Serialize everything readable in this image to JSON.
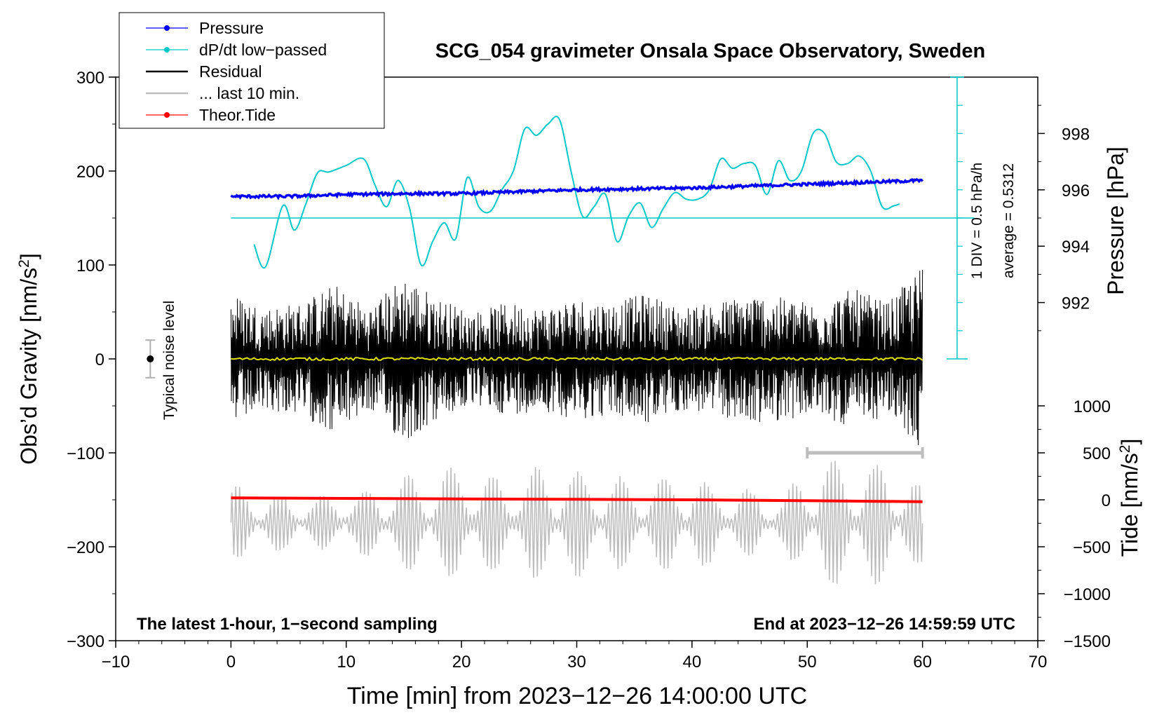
{
  "chart_data": {
    "type": "line",
    "title": "SCG_054 gravimeter Onsala Space Observatory, Sweden",
    "xlabel": "Time [min] from 2023−12−26 14:00:00 UTC",
    "ylabel_left": "Obs’d Gravity [nm/s",
    "ylabel_left_sup": "2",
    "ylabel_left_tail": "]",
    "ylabel_right_pressure": "Pressure [hPa]",
    "ylabel_right_tide": "Tide [nm/s",
    "ylabel_right_tide_sup": "2",
    "ylabel_right_tide_tail": "]",
    "xlim": [
      -10,
      70
    ],
    "ylim_left": [
      -300,
      300
    ],
    "x_ticks": [
      "−10",
      "0",
      "10",
      "20",
      "30",
      "40",
      "50",
      "60",
      "70"
    ],
    "x_tick_values": [
      -10,
      0,
      10,
      20,
      30,
      40,
      50,
      60,
      70
    ],
    "y_left_ticks": [
      "300",
      "200",
      "100",
      "0",
      "−100",
      "−200",
      "−300"
    ],
    "y_left_tick_values": [
      300,
      200,
      100,
      0,
      -100,
      -200,
      -300
    ],
    "pressure_ticks": [
      "998",
      "996",
      "994",
      "992"
    ],
    "pressure_tick_values": [
      998,
      996,
      994,
      992
    ],
    "pressure_axis_map": {
      "gravity_at_998": 240,
      "gravity_per_hPa": 30
    },
    "tide_ticks": [
      "1000",
      "500",
      "0",
      "−500",
      "−1000",
      "−1500"
    ],
    "tide_tick_values": [
      1000,
      500,
      0,
      -500,
      -1000,
      -1500
    ],
    "tide_axis_map": {
      "gravity_at_0": -150,
      "gravity_per_nms2": 0.1
    },
    "footer_left": "The latest 1-hour, 1−second sampling",
    "footer_right": "End at 2023−12−26 14:59:59 UTC",
    "noise_label": "Typical noise level",
    "noise_level": {
      "x": -7,
      "center": 0,
      "half_range": 20
    },
    "dpdt_scale": {
      "label_div": "1 DIV = 0.5 hPa/h",
      "label_avg": "average = 0.5312",
      "x": 63,
      "baseline": 150,
      "div_count": 10,
      "div_size": 30
    },
    "last10_marker": {
      "x_start": 50,
      "x_end": 60,
      "y": -100
    },
    "legend": [
      {
        "label": "Pressure",
        "color": "#0000ff",
        "style": "line-dot"
      },
      {
        "label": "dP/dt low−passed",
        "color": "#00c8c8",
        "style": "line-dot"
      },
      {
        "label": "Residual",
        "color": "#000000",
        "style": "line"
      },
      {
        "label": "... last 10 min.",
        "color": "#bdbdbd",
        "style": "line"
      },
      {
        "label": "Theor.Tide",
        "color": "#ff0000",
        "style": "line-dot"
      }
    ],
    "series": [
      {
        "name": "Pressure",
        "color": "#0000ff",
        "x": [
          0,
          5,
          10,
          15,
          20,
          25,
          30,
          35,
          40,
          45,
          50,
          55,
          60
        ],
        "y": [
          173,
          173,
          175,
          176,
          176,
          178,
          180,
          181,
          182,
          184,
          186,
          188,
          190
        ]
      },
      {
        "name": "dP/dt low-passed",
        "color": "#00c8c8",
        "x": [
          2,
          3,
          4.5,
          5.5,
          6.5,
          7.5,
          8.5,
          10,
          11.5,
          12.5,
          13.5,
          14.5,
          15.5,
          16.5,
          17.5,
          18.5,
          19.5,
          20.5,
          21.5,
          22.5,
          23.5,
          24.5,
          25.5,
          26.5,
          27.5,
          28.5,
          29.5,
          30.5,
          31.5,
          32.5,
          33.5,
          34.5,
          35.5,
          36.5,
          37.5,
          38.5,
          39.5,
          40.5,
          41.5,
          42.5,
          43.5,
          44.5,
          45.5,
          46.5,
          47.5,
          48.5,
          49.5,
          50.5,
          51.5,
          52.5,
          53.5,
          54.5,
          55.5,
          56.5,
          57.5,
          58
        ],
        "y": [
          122,
          98,
          163,
          137,
          165,
          198,
          199,
          206,
          213,
          185,
          162,
          190,
          160,
          100,
          125,
          145,
          128,
          193,
          162,
          157,
          180,
          200,
          245,
          238,
          250,
          255,
          200,
          152,
          162,
          175,
          125,
          152,
          166,
          140,
          160,
          177,
          170,
          170,
          180,
          213,
          203,
          208,
          206,
          175,
          211,
          190,
          200,
          240,
          240,
          210,
          208,
          216,
          200,
          162,
          163,
          165
        ]
      },
      {
        "name": "Residual",
        "color": "#000000",
        "envelope_x": [
          0,
          3,
          6,
          9,
          12,
          15,
          18,
          21,
          24,
          27,
          30,
          33,
          36,
          39,
          42,
          45,
          48,
          51,
          54,
          57,
          60
        ],
        "envelope_amp": [
          70,
          55,
          60,
          80,
          55,
          90,
          65,
          50,
          60,
          55,
          65,
          60,
          70,
          55,
          60,
          70,
          65,
          60,
          75,
          60,
          100
        ]
      },
      {
        "name": "... last 10 min.",
        "color": "#bdbdbd",
        "envelope_x": [
          0,
          3,
          6,
          9,
          12,
          15,
          18,
          21,
          24,
          27,
          30,
          33,
          36,
          39,
          42,
          45,
          48,
          51,
          54,
          57,
          60
        ],
        "envelope_amp": [
          40,
          30,
          25,
          30,
          35,
          50,
          55,
          60,
          45,
          60,
          55,
          50,
          45,
          55,
          40,
          35,
          30,
          70,
          60,
          65,
          40
        ]
      },
      {
        "name": "Theor.Tide",
        "color": "#ff0000",
        "x": [
          0,
          10,
          20,
          30,
          40,
          50,
          60
        ],
        "y": [
          -148,
          -148.5,
          -149,
          -149.5,
          -150,
          -151,
          -152
        ]
      }
    ]
  }
}
